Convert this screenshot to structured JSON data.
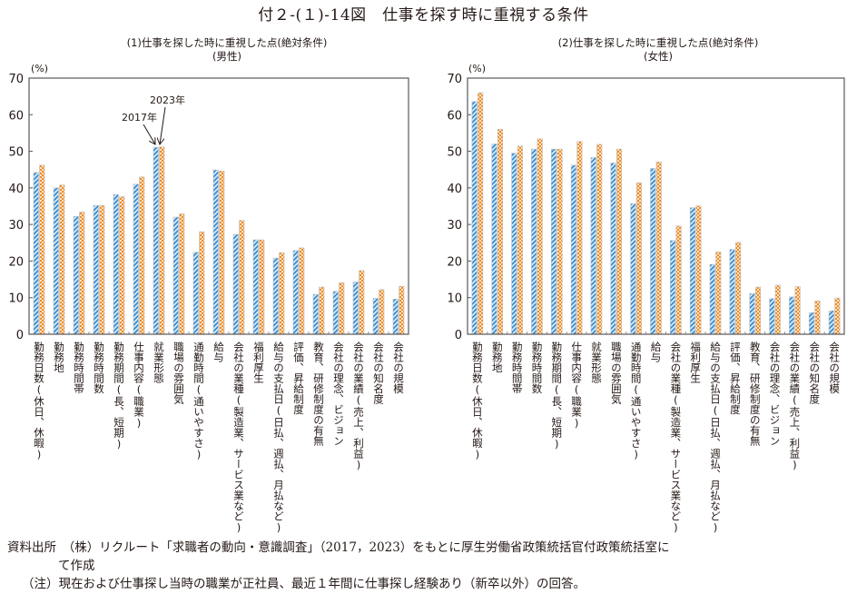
{
  "figure_title": "付２-(１)-14図　仕事を探す時に重視する条件",
  "colors": {
    "series_2017": "#3a8fd6",
    "series_2017_light": "#cfe8f7",
    "series_2023": "#f08a24",
    "series_2023_light": "#fde3c4",
    "axis": "#595757"
  },
  "chart_data": [
    {
      "type": "bar",
      "title": "(1)仕事を探した時に重視した点(絶対条件)",
      "subtitle": "(男性)",
      "ylabel": "(%)",
      "xlabel": "",
      "ylim": [
        0,
        70
      ],
      "yticks": [
        "0",
        "10",
        "20",
        "30",
        "40",
        "50",
        "60",
        "70"
      ],
      "grid": false,
      "categories": [
        "勤務日数(休日、休暇)",
        "勤務地",
        "勤務時間帯",
        "勤務時間数",
        "勤務期間(長、短期)",
        "仕事内容(職業)",
        "就業形態",
        "職場の雰囲気",
        "通勤時間(通いやすさ)",
        "給与",
        "会社の業種(製造業、サービス業など)",
        "福利厚生",
        "給与の支払日(日払、週払、月払など)",
        "評価、昇給制度",
        "教育、研修制度の有無",
        "会社の理念、ビジョン",
        "会社の業績(売上、利益)",
        "会社の知名度",
        "会社の規模"
      ],
      "series": [
        {
          "name": "2017年",
          "values": [
            44.2,
            40.0,
            32.2,
            35.2,
            38.2,
            41.0,
            51.1,
            32.0,
            22.4,
            44.9,
            27.3,
            25.8,
            20.8,
            22.9,
            10.9,
            11.7,
            14.3,
            9.8,
            9.6
          ]
        },
        {
          "name": "2023年",
          "values": [
            46.2,
            40.8,
            33.4,
            35.2,
            37.6,
            43.0,
            51.2,
            32.9,
            28.0,
            44.6,
            31.1,
            25.8,
            22.3,
            23.6,
            12.9,
            14.1,
            17.4,
            12.2,
            13.1
          ]
        }
      ],
      "annotations": [
        "2017年",
        "2023年"
      ]
    },
    {
      "type": "bar",
      "title": "(2)仕事を探した時に重視した点(絶対条件)",
      "subtitle": "(女性)",
      "ylabel": "(%)",
      "xlabel": "",
      "ylim": [
        0,
        70
      ],
      "yticks": [
        "0",
        "10",
        "20",
        "30",
        "40",
        "50",
        "60",
        "70"
      ],
      "grid": false,
      "categories": [
        "勤務日数(休日、休暇)",
        "勤務地",
        "勤務時間帯",
        "勤務時間数",
        "勤務期間(長、短期)",
        "仕事内容(職業)",
        "就業形態",
        "職場の雰囲気",
        "通勤時間(通いやすさ)",
        "給与",
        "会社の業種(製造業、サービス業など)",
        "福利厚生",
        "給与の支払日(日払、週払、月払など)",
        "評価、昇給制度",
        "教育、研修制度の有無",
        "会社の理念、ビジョン",
        "会社の業績(売上、利益)",
        "会社の知名度",
        "会社の規模"
      ],
      "series": [
        {
          "name": "2017年",
          "values": [
            63.6,
            52.0,
            49.5,
            50.6,
            50.6,
            46.2,
            48.3,
            46.8,
            35.7,
            45.3,
            25.6,
            34.6,
            19.1,
            23.2,
            11.1,
            9.7,
            10.2,
            5.9,
            6.4
          ]
        },
        {
          "name": "2023年",
          "values": [
            66.0,
            56.0,
            51.4,
            53.4,
            50.6,
            52.7,
            51.9,
            50.6,
            41.4,
            47.1,
            29.6,
            35.1,
            22.5,
            25.1,
            12.9,
            13.4,
            13.0,
            9.1,
            9.9
          ]
        }
      ]
    }
  ],
  "footnotes": {
    "source_line1": "資料出所　（株）リクルート「求職者の動向・意識調査」（2017，2023）をもとに厚生労働省政策統括官付政策統括室に",
    "source_line2": "て作成",
    "note": "（注）現在および仕事探し当時の職業が正社員、最近１年間に仕事探し経験あり（新卒以外）の回答。"
  }
}
